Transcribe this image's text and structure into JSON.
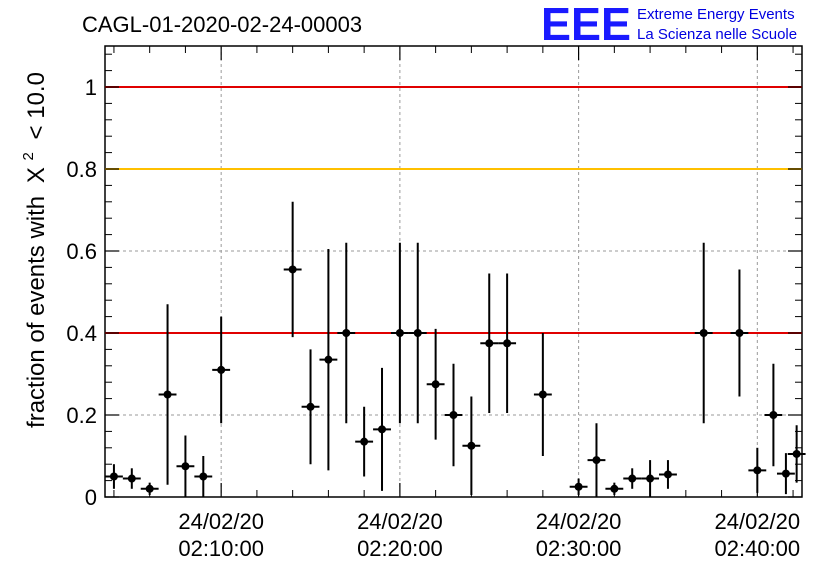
{
  "title": "CAGL-01-2020-02-24-00003",
  "logo": {
    "mark": "EEE",
    "line1": "Extreme Energy Events",
    "line2": "La Scienza nelle Scuole"
  },
  "chart_data": {
    "type": "scatter",
    "title": "CAGL-01-2020-02-24-00003",
    "xlabel": "",
    "ylabel": "fraction of events with",
    "ylabel_symbol": "X",
    "ylabel_exponent": "2",
    "ylabel_threshold": "< 10.0",
    "xlim_minutes": [
      3.5,
      42.5
    ],
    "ylim": [
      0,
      1.1
    ],
    "grid": true,
    "x_ticks": [
      {
        "minutes": 10,
        "date": "24/02/20",
        "time": "02:10:00"
      },
      {
        "minutes": 20,
        "date": "24/02/20",
        "time": "02:20:00"
      },
      {
        "minutes": 30,
        "date": "24/02/20",
        "time": "02:30:00"
      },
      {
        "minutes": 40,
        "date": "24/02/20",
        "time": "02:40:00"
      }
    ],
    "y_ticks": [
      {
        "value": 0,
        "label": "0"
      },
      {
        "value": 0.2,
        "label": "0.2"
      },
      {
        "value": 0.4,
        "label": "0.4"
      },
      {
        "value": 0.6,
        "label": "0.6"
      },
      {
        "value": 0.8,
        "label": "0.8"
      },
      {
        "value": 1.0,
        "label": "1"
      }
    ],
    "reference_lines": [
      {
        "y": 1.0,
        "color": "#e00000"
      },
      {
        "y": 0.8,
        "color": "#ffc000"
      },
      {
        "y": 0.4,
        "color": "#e00000"
      }
    ],
    "points": [
      {
        "x": 4.0,
        "y": 0.05,
        "err": 0.03
      },
      {
        "x": 5.0,
        "y": 0.045,
        "err": 0.025
      },
      {
        "x": 6.0,
        "y": 0.02,
        "err": 0.015
      },
      {
        "x": 7.0,
        "y": 0.25,
        "err": 0.22
      },
      {
        "x": 8.0,
        "y": 0.075,
        "err": 0.075
      },
      {
        "x": 9.0,
        "y": 0.05,
        "err": 0.05
      },
      {
        "x": 10.0,
        "y": 0.31,
        "err": 0.13
      },
      {
        "x": 14.0,
        "y": 0.555,
        "err": 0.165
      },
      {
        "x": 15.0,
        "y": 0.22,
        "err": 0.14
      },
      {
        "x": 16.0,
        "y": 0.335,
        "err": 0.27
      },
      {
        "x": 17.0,
        "y": 0.4,
        "err": 0.22
      },
      {
        "x": 18.0,
        "y": 0.135,
        "err": 0.085
      },
      {
        "x": 19.0,
        "y": 0.165,
        "err": 0.15
      },
      {
        "x": 20.0,
        "y": 0.4,
        "err": 0.22
      },
      {
        "x": 21.0,
        "y": 0.4,
        "err": 0.22
      },
      {
        "x": 22.0,
        "y": 0.275,
        "err": 0.135
      },
      {
        "x": 23.0,
        "y": 0.2,
        "err": 0.125
      },
      {
        "x": 24.0,
        "y": 0.125,
        "err": 0.12
      },
      {
        "x": 25.0,
        "y": 0.375,
        "err": 0.17
      },
      {
        "x": 26.0,
        "y": 0.375,
        "err": 0.17
      },
      {
        "x": 28.0,
        "y": 0.25,
        "err": 0.15
      },
      {
        "x": 30.0,
        "y": 0.025,
        "err": 0.02
      },
      {
        "x": 31.0,
        "y": 0.09,
        "err": 0.09
      },
      {
        "x": 32.0,
        "y": 0.02,
        "err": 0.015
      },
      {
        "x": 33.0,
        "y": 0.045,
        "err": 0.025
      },
      {
        "x": 34.0,
        "y": 0.045,
        "err": 0.045
      },
      {
        "x": 35.0,
        "y": 0.055,
        "err": 0.035
      },
      {
        "x": 37.0,
        "y": 0.4,
        "err": 0.22
      },
      {
        "x": 39.0,
        "y": 0.4,
        "err": 0.155
      },
      {
        "x": 40.0,
        "y": 0.065,
        "err": 0.055
      },
      {
        "x": 40.9,
        "y": 0.2,
        "err": 0.125
      },
      {
        "x": 41.6,
        "y": 0.057,
        "err": 0.05
      },
      {
        "x": 42.2,
        "y": 0.105,
        "err": 0.07
      }
    ]
  }
}
